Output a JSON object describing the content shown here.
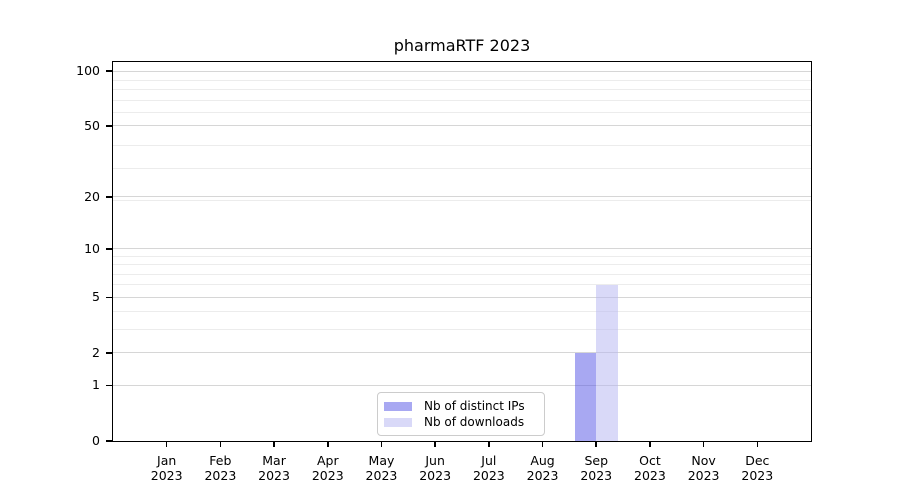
{
  "chart_data": {
    "type": "bar",
    "title": "pharmaRTF 2023",
    "xlabel": "",
    "ylabel": "",
    "x_ticks": [
      {
        "month": "Jan",
        "year": "2023"
      },
      {
        "month": "Feb",
        "year": "2023"
      },
      {
        "month": "Mar",
        "year": "2023"
      },
      {
        "month": "Apr",
        "year": "2023"
      },
      {
        "month": "May",
        "year": "2023"
      },
      {
        "month": "Jun",
        "year": "2023"
      },
      {
        "month": "Jul",
        "year": "2023"
      },
      {
        "month": "Aug",
        "year": "2023"
      },
      {
        "month": "Sep",
        "year": "2023"
      },
      {
        "month": "Oct",
        "year": "2023"
      },
      {
        "month": "Nov",
        "year": "2023"
      },
      {
        "month": "Dec",
        "year": "2023"
      }
    ],
    "series": [
      {
        "name": "Nb of distinct IPs",
        "color_solid": "#a8a8f2",
        "color_rgba": "rgba(81,81,229,0.5)",
        "values": [
          0,
          0,
          0,
          0,
          0,
          0,
          0,
          0,
          2,
          0,
          0,
          0
        ]
      },
      {
        "name": "Nb of downloads",
        "color_solid": "#d9d9f8",
        "color_rgba": "rgba(179,179,241,0.5)",
        "values": [
          0,
          0,
          0,
          0,
          0,
          0,
          0,
          0,
          6,
          0,
          0,
          0
        ]
      }
    ],
    "y_axis": {
      "scale": "log1p",
      "major_ticks": [
        0,
        1,
        2,
        5,
        10,
        20,
        50,
        100
      ],
      "minor_gridlines": [
        3,
        4,
        6,
        7,
        8,
        9,
        19,
        29,
        39,
        59,
        69,
        79,
        89,
        99
      ],
      "ylim": [
        0,
        112
      ]
    },
    "legend": {
      "position": "lower center",
      "items": [
        "Nb of distinct IPs",
        "Nb of downloads"
      ]
    },
    "grid": "horizontal-only",
    "colors": {
      "major_grid": "#d6d6d6",
      "minor_grid": "#ececec",
      "axis": "#000000",
      "background": "#ffffff",
      "text": "#000000"
    }
  }
}
